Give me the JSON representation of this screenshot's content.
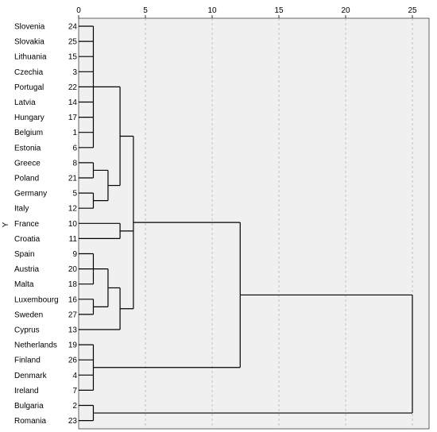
{
  "chart_data": {
    "type": "dendrogram",
    "ylabel": "Y",
    "xlim": [
      0,
      25
    ],
    "x_ticks": [
      0,
      5,
      10,
      15,
      20,
      25
    ],
    "grid": true,
    "leaves": [
      {
        "name": "Slovenia",
        "id": "24"
      },
      {
        "name": "Slovakia",
        "id": "25"
      },
      {
        "name": "Lithuania",
        "id": "15"
      },
      {
        "name": "Czechia",
        "id": "3"
      },
      {
        "name": "Portugal",
        "id": "22"
      },
      {
        "name": "Latvia",
        "id": "14"
      },
      {
        "name": "Hungary",
        "id": "17"
      },
      {
        "name": "Belgium",
        "id": "1"
      },
      {
        "name": "Estonia",
        "id": "6"
      },
      {
        "name": "Greece",
        "id": "8"
      },
      {
        "name": "Poland",
        "id": "21"
      },
      {
        "name": "Germany",
        "id": "5"
      },
      {
        "name": "Italy",
        "id": "12"
      },
      {
        "name": "France",
        "id": "10"
      },
      {
        "name": "Croatia",
        "id": "11"
      },
      {
        "name": "Spain",
        "id": "9"
      },
      {
        "name": "Austria",
        "id": "20"
      },
      {
        "name": "Malta",
        "id": "18"
      },
      {
        "name": "Luxembourg",
        "id": "16"
      },
      {
        "name": "Sweden",
        "id": "27"
      },
      {
        "name": "Cyprus",
        "id": "13"
      },
      {
        "name": "Netherlands",
        "id": "19"
      },
      {
        "name": "Finland",
        "id": "26"
      },
      {
        "name": "Denmark",
        "id": "4"
      },
      {
        "name": "Ireland",
        "id": "7"
      },
      {
        "name": "Bulgaria",
        "id": "2"
      },
      {
        "name": "Romania",
        "id": "23"
      }
    ],
    "merges": [
      {
        "id": "A",
        "children": [
          0,
          1,
          2,
          3,
          4,
          5,
          6,
          7,
          8
        ],
        "height": 1.1
      },
      {
        "id": "B",
        "children": [
          9,
          10
        ],
        "height": 1.1
      },
      {
        "id": "C",
        "children": [
          11,
          12
        ],
        "height": 1.1
      },
      {
        "id": "D",
        "children": [
          "B",
          "C"
        ],
        "height": 2.2
      },
      {
        "id": "E",
        "children": [
          "A",
          "D"
        ],
        "height": 3.1
      },
      {
        "id": "F",
        "children": [
          13,
          14
        ],
        "height": 3.1
      },
      {
        "id": "G",
        "children": [
          15,
          16,
          17
        ],
        "height": 1.1
      },
      {
        "id": "H",
        "children": [
          18,
          19
        ],
        "height": 1.1
      },
      {
        "id": "I",
        "children": [
          "G",
          "H"
        ],
        "height": 2.2
      },
      {
        "id": "J",
        "children": [
          "I",
          20
        ],
        "height": 3.1
      },
      {
        "id": "K",
        "children": [
          "E",
          "F",
          "J"
        ],
        "height": 4.1
      },
      {
        "id": "L",
        "children": [
          21,
          22,
          23,
          24
        ],
        "height": 1.1
      },
      {
        "id": "M",
        "children": [
          "K",
          "L"
        ],
        "height": 12.1
      },
      {
        "id": "N",
        "children": [
          25,
          26
        ],
        "height": 1.1
      },
      {
        "id": "O",
        "children": [
          "M",
          "N"
        ],
        "height": 25
      }
    ]
  }
}
